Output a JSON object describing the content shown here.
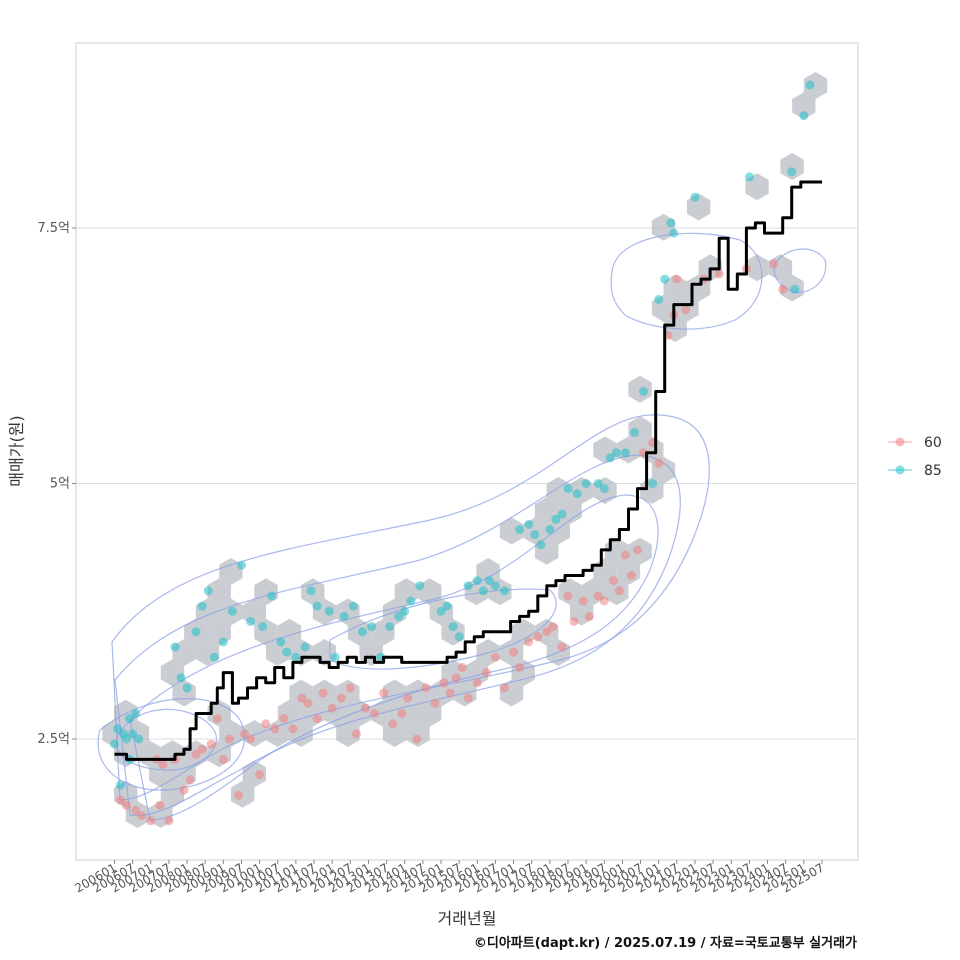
{
  "chart_data": {
    "type": "scatter",
    "title": "",
    "xlabel": "거래년월",
    "ylabel": "매매가(원)",
    "caption": "©디아파트(dapt.kr) / 2025.07.19 / 자료=국토교통부 실거래가",
    "x_range": [
      "2006-01",
      "2025-12"
    ],
    "ylim": [
      1.2,
      9.2
    ],
    "y_ticks": [
      {
        "value": 2.5,
        "label": "2.5억"
      },
      {
        "value": 5,
        "label": "5억"
      },
      {
        "value": 7.5,
        "label": "7.5억"
      }
    ],
    "x_tick_labels": [
      "200601",
      "200607",
      "200701",
      "200707",
      "200801",
      "200807",
      "200901",
      "200907",
      "201001",
      "201007",
      "201101",
      "201107",
      "201201",
      "201207",
      "201301",
      "201307",
      "201401",
      "201407",
      "201501",
      "201507",
      "201601",
      "201607",
      "201701",
      "201707",
      "201801",
      "201807",
      "201901",
      "201907",
      "202001",
      "202007",
      "202101",
      "202107",
      "202201",
      "202207",
      "202301",
      "202307",
      "202401",
      "202407",
      "202501",
      "202507"
    ],
    "grid": true,
    "legend": {
      "position": "right",
      "entries": [
        {
          "name": "60",
          "color": "#f08080"
        },
        {
          "name": "85",
          "color": "#20c0c8"
        }
      ]
    },
    "series": [
      {
        "name": "60",
        "color": "#f08080",
        "points": [
          [
            "2006-03",
            1.9
          ],
          [
            "2006-05",
            1.85
          ],
          [
            "2006-08",
            1.8
          ],
          [
            "2006-10",
            1.75
          ],
          [
            "2007-01",
            1.7
          ],
          [
            "2007-04",
            1.85
          ],
          [
            "2007-07",
            1.7
          ],
          [
            "2007-03",
            2.3
          ],
          [
            "2007-05",
            2.25
          ],
          [
            "2007-09",
            2.3
          ],
          [
            "2007-12",
            2.0
          ],
          [
            "2008-02",
            2.1
          ],
          [
            "2008-04",
            2.35
          ],
          [
            "2008-06",
            2.4
          ],
          [
            "2008-09",
            2.45
          ],
          [
            "2008-11",
            2.7
          ],
          [
            "2009-01",
            2.3
          ],
          [
            "2009-03",
            2.5
          ],
          [
            "2009-06",
            1.95
          ],
          [
            "2009-08",
            2.55
          ],
          [
            "2009-10",
            2.5
          ],
          [
            "2010-01",
            2.15
          ],
          [
            "2010-03",
            2.65
          ],
          [
            "2010-06",
            2.6
          ],
          [
            "2010-09",
            2.7
          ],
          [
            "2010-12",
            2.6
          ],
          [
            "2011-03",
            2.9
          ],
          [
            "2011-05",
            2.85
          ],
          [
            "2011-08",
            2.7
          ],
          [
            "2011-10",
            2.95
          ],
          [
            "2012-01",
            2.8
          ],
          [
            "2012-04",
            2.9
          ],
          [
            "2012-07",
            3.0
          ],
          [
            "2012-09",
            2.55
          ],
          [
            "2012-12",
            2.8
          ],
          [
            "2013-03",
            2.75
          ],
          [
            "2013-06",
            2.95
          ],
          [
            "2013-09",
            2.65
          ],
          [
            "2013-12",
            2.75
          ],
          [
            "2014-02",
            2.9
          ],
          [
            "2014-05",
            2.5
          ],
          [
            "2014-08",
            3.0
          ],
          [
            "2014-11",
            2.85
          ],
          [
            "2015-02",
            3.05
          ],
          [
            "2015-04",
            2.95
          ],
          [
            "2015-06",
            3.1
          ],
          [
            "2015-08",
            3.2
          ],
          [
            "2015-10",
            2.9
          ],
          [
            "2016-01",
            3.05
          ],
          [
            "2016-04",
            3.15
          ],
          [
            "2016-07",
            3.3
          ],
          [
            "2016-10",
            3.0
          ],
          [
            "2017-01",
            3.35
          ],
          [
            "2017-03",
            3.2
          ],
          [
            "2017-06",
            3.45
          ],
          [
            "2017-09",
            3.5
          ],
          [
            "2017-12",
            3.55
          ],
          [
            "2018-02",
            3.6
          ],
          [
            "2018-05",
            3.4
          ],
          [
            "2018-07",
            3.9
          ],
          [
            "2018-09",
            3.65
          ],
          [
            "2018-12",
            3.85
          ],
          [
            "2019-02",
            3.7
          ],
          [
            "2019-05",
            3.9
          ],
          [
            "2019-07",
            3.85
          ],
          [
            "2019-10",
            4.05
          ],
          [
            "2019-12",
            3.95
          ],
          [
            "2020-02",
            4.3
          ],
          [
            "2020-04",
            4.1
          ],
          [
            "2020-06",
            4.35
          ],
          [
            "2020-08",
            5.3
          ],
          [
            "2020-11",
            5.4
          ],
          [
            "2021-01",
            5.2
          ],
          [
            "2021-04",
            6.45
          ],
          [
            "2021-06",
            6.65
          ],
          [
            "2021-07",
            7.0
          ],
          [
            "2021-10",
            6.7
          ],
          [
            "2022-04",
            7.0
          ],
          [
            "2022-09",
            7.05
          ],
          [
            "2023-06",
            7.1
          ],
          [
            "2024-03",
            7.15
          ],
          [
            "2024-06",
            6.9
          ]
        ]
      },
      {
        "name": "85",
        "color": "#20c0c8",
        "points": [
          [
            "2006-01",
            2.45
          ],
          [
            "2006-02",
            2.6
          ],
          [
            "2006-04",
            2.55
          ],
          [
            "2006-05",
            2.5
          ],
          [
            "2006-06",
            2.7
          ],
          [
            "2006-07",
            2.55
          ],
          [
            "2006-08",
            2.75
          ],
          [
            "2006-09",
            2.5
          ],
          [
            "2006-03",
            2.05
          ],
          [
            "2006-06",
            2.3
          ],
          [
            "2007-09",
            3.4
          ],
          [
            "2007-11",
            3.1
          ],
          [
            "2008-01",
            3.0
          ],
          [
            "2008-04",
            3.55
          ],
          [
            "2008-06",
            3.8
          ],
          [
            "2008-08",
            3.95
          ],
          [
            "2008-10",
            3.3
          ],
          [
            "2009-01",
            3.45
          ],
          [
            "2009-04",
            3.75
          ],
          [
            "2009-07",
            4.2
          ],
          [
            "2009-10",
            3.65
          ],
          [
            "2010-02",
            3.6
          ],
          [
            "2010-05",
            3.9
          ],
          [
            "2010-08",
            3.45
          ],
          [
            "2010-10",
            3.35
          ],
          [
            "2011-01",
            3.3
          ],
          [
            "2011-04",
            3.4
          ],
          [
            "2011-06",
            3.95
          ],
          [
            "2011-08",
            3.8
          ],
          [
            "2011-12",
            3.75
          ],
          [
            "2012-02",
            3.3
          ],
          [
            "2012-05",
            3.7
          ],
          [
            "2012-08",
            3.8
          ],
          [
            "2012-11",
            3.55
          ],
          [
            "2013-02",
            3.6
          ],
          [
            "2013-05",
            3.3
          ],
          [
            "2013-08",
            3.6
          ],
          [
            "2013-11",
            3.7
          ],
          [
            "2014-01",
            3.75
          ],
          [
            "2014-03",
            3.85
          ],
          [
            "2014-06",
            4.0
          ],
          [
            "2015-01",
            3.75
          ],
          [
            "2015-03",
            3.8
          ],
          [
            "2015-05",
            3.6
          ],
          [
            "2015-07",
            3.5
          ],
          [
            "2015-10",
            4.0
          ],
          [
            "2016-01",
            4.05
          ],
          [
            "2016-03",
            3.95
          ],
          [
            "2016-05",
            4.05
          ],
          [
            "2016-07",
            4.0
          ],
          [
            "2016-10",
            3.95
          ],
          [
            "2017-03",
            4.55
          ],
          [
            "2017-06",
            4.6
          ],
          [
            "2017-08",
            4.5
          ],
          [
            "2017-10",
            4.4
          ],
          [
            "2018-01",
            4.55
          ],
          [
            "2018-03",
            4.65
          ],
          [
            "2018-05",
            4.7
          ],
          [
            "2018-07",
            4.95
          ],
          [
            "2018-10",
            4.9
          ],
          [
            "2019-01",
            5.0
          ],
          [
            "2019-05",
            5.0
          ],
          [
            "2019-07",
            4.95
          ],
          [
            "2019-09",
            5.25
          ],
          [
            "2019-11",
            5.3
          ],
          [
            "2020-02",
            5.3
          ],
          [
            "2020-05",
            5.5
          ],
          [
            "2020-08",
            5.9
          ],
          [
            "2020-11",
            5.0
          ],
          [
            "2021-01",
            6.8
          ],
          [
            "2021-03",
            7.0
          ],
          [
            "2021-05",
            7.55
          ],
          [
            "2021-06",
            7.45
          ],
          [
            "2022-01",
            7.8
          ],
          [
            "2023-07",
            8.0
          ],
          [
            "2024-09",
            8.05
          ],
          [
            "2025-01",
            8.6
          ],
          [
            "2025-03",
            8.9
          ],
          [
            "2024-10",
            6.9
          ]
        ]
      },
      {
        "name": "trend",
        "color": "#000000",
        "points": [
          [
            "2006-01",
            2.35
          ],
          [
            "2006-03",
            2.35
          ],
          [
            "2006-05",
            2.3
          ],
          [
            "2006-10",
            2.3
          ],
          [
            "2007-03",
            2.3
          ],
          [
            "2007-06",
            2.3
          ],
          [
            "2007-09",
            2.35
          ],
          [
            "2007-12",
            2.4
          ],
          [
            "2008-02",
            2.6
          ],
          [
            "2008-04",
            2.75
          ],
          [
            "2008-07",
            2.75
          ],
          [
            "2008-09",
            2.85
          ],
          [
            "2008-11",
            3.0
          ],
          [
            "2009-01",
            3.15
          ],
          [
            "2009-04",
            2.85
          ],
          [
            "2009-06",
            2.9
          ],
          [
            "2009-09",
            3.0
          ],
          [
            "2009-12",
            3.1
          ],
          [
            "2010-03",
            3.05
          ],
          [
            "2010-06",
            3.2
          ],
          [
            "2010-09",
            3.1
          ],
          [
            "2010-12",
            3.25
          ],
          [
            "2011-03",
            3.3
          ],
          [
            "2011-06",
            3.3
          ],
          [
            "2011-09",
            3.25
          ],
          [
            "2011-12",
            3.2
          ],
          [
            "2012-03",
            3.25
          ],
          [
            "2012-06",
            3.3
          ],
          [
            "2012-09",
            3.25
          ],
          [
            "2012-12",
            3.3
          ],
          [
            "2013-03",
            3.25
          ],
          [
            "2013-06",
            3.3
          ],
          [
            "2013-09",
            3.3
          ],
          [
            "2013-12",
            3.25
          ],
          [
            "2014-03",
            3.25
          ],
          [
            "2014-06",
            3.25
          ],
          [
            "2014-09",
            3.25
          ],
          [
            "2014-12",
            3.25
          ],
          [
            "2015-03",
            3.3
          ],
          [
            "2015-06",
            3.35
          ],
          [
            "2015-09",
            3.45
          ],
          [
            "2015-12",
            3.5
          ],
          [
            "2016-03",
            3.55
          ],
          [
            "2016-06",
            3.55
          ],
          [
            "2016-09",
            3.55
          ],
          [
            "2016-12",
            3.65
          ],
          [
            "2017-03",
            3.7
          ],
          [
            "2017-06",
            3.75
          ],
          [
            "2017-09",
            3.9
          ],
          [
            "2017-12",
            4.0
          ],
          [
            "2018-03",
            4.05
          ],
          [
            "2018-06",
            4.1
          ],
          [
            "2018-09",
            4.1
          ],
          [
            "2018-12",
            4.15
          ],
          [
            "2019-03",
            4.2
          ],
          [
            "2019-06",
            4.35
          ],
          [
            "2019-09",
            4.45
          ],
          [
            "2019-12",
            4.55
          ],
          [
            "2020-03",
            4.75
          ],
          [
            "2020-06",
            4.95
          ],
          [
            "2020-09",
            5.3
          ],
          [
            "2020-12",
            5.9
          ],
          [
            "2021-03",
            6.55
          ],
          [
            "2021-06",
            6.75
          ],
          [
            "2021-09",
            6.75
          ],
          [
            "2021-12",
            6.95
          ],
          [
            "2022-03",
            7.0
          ],
          [
            "2022-06",
            7.1
          ],
          [
            "2022-09",
            7.4
          ],
          [
            "2022-12",
            6.9
          ],
          [
            "2023-03",
            7.05
          ],
          [
            "2023-06",
            7.5
          ],
          [
            "2023-09",
            7.55
          ],
          [
            "2023-12",
            7.45
          ],
          [
            "2024-03",
            7.45
          ],
          [
            "2024-06",
            7.6
          ],
          [
            "2024-09",
            7.9
          ],
          [
            "2024-12",
            7.95
          ],
          [
            "2025-03",
            7.95
          ],
          [
            "2025-07",
            7.95
          ]
        ]
      }
    ]
  }
}
